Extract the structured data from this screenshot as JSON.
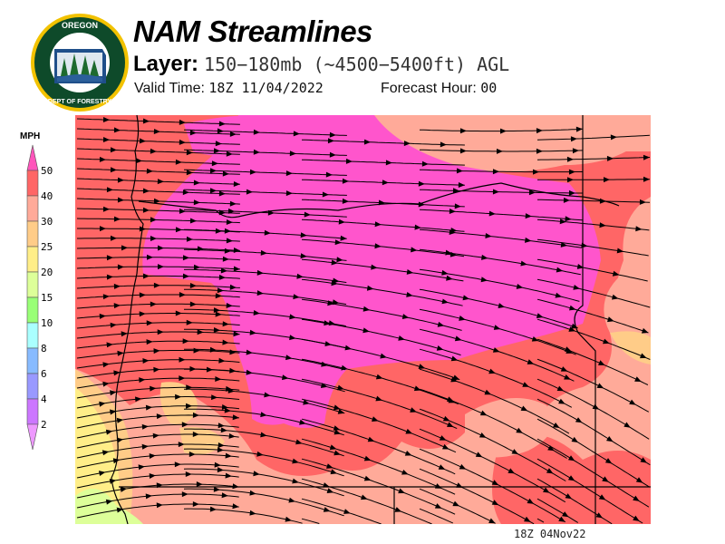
{
  "header": {
    "title": "NAM Streamlines",
    "layer_label": "Layer:",
    "layer_value": "150−180mb (~4500−5400ft) AGL",
    "valid_label": "Valid Time:",
    "valid_value": "18Z 11/04/2022",
    "forecast_label": "Forecast Hour:",
    "forecast_value": "00"
  },
  "logo": {
    "text_top": "OREGON",
    "text_bottom": "DEPARTMENT OF FORESTRY"
  },
  "legend": {
    "unit": "MPH",
    "levels": [
      {
        "label": "50",
        "color": "#ff55bb"
      },
      {
        "label": "40",
        "color": "#ff6666"
      },
      {
        "label": "30",
        "color": "#ffaa99"
      },
      {
        "label": "25",
        "color": "#ffcc88"
      },
      {
        "label": "20",
        "color": "#ffee88"
      },
      {
        "label": "15",
        "color": "#ddff99"
      },
      {
        "label": "10",
        "color": "#99ff77"
      },
      {
        "label": "8",
        "color": "#aaffff"
      },
      {
        "label": "6",
        "color": "#88bbff"
      },
      {
        "label": "4",
        "color": "#9999ff"
      },
      {
        "label": "2",
        "color": "#cc77ff"
      }
    ],
    "top_arrow_color": "#ff55bb",
    "bottom_arrow_color": "#ee99ff"
  },
  "map": {
    "timestamp": "18Z 04Nov22"
  }
}
